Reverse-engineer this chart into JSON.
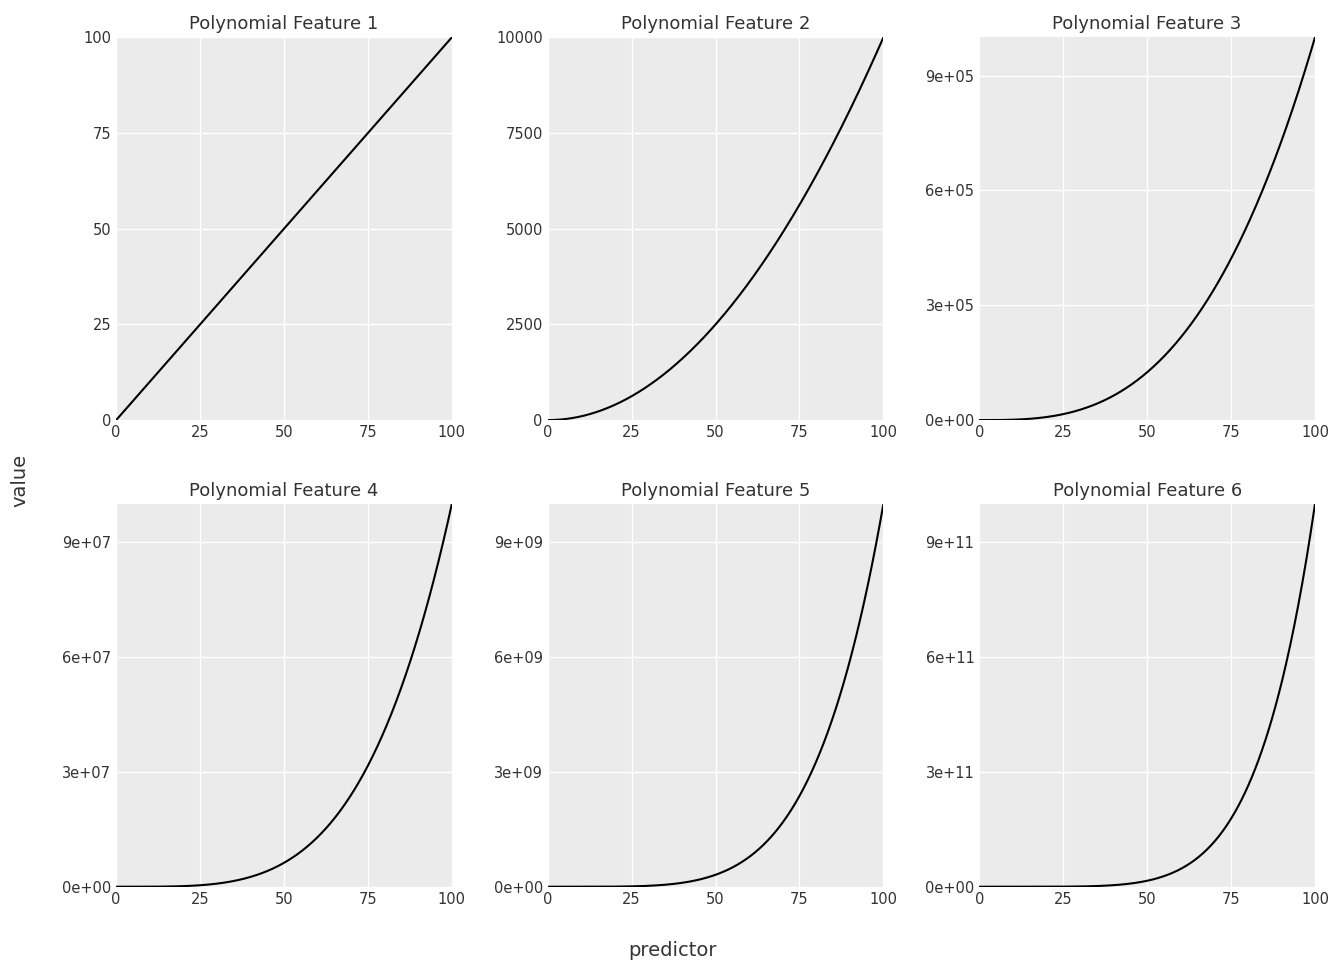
{
  "titles": [
    "Polynomial Feature 1",
    "Polynomial Feature 2",
    "Polynomial Feature 3",
    "Polynomial Feature 4",
    "Polynomial Feature 5",
    "Polynomial Feature 6"
  ],
  "degrees": [
    1,
    2,
    3,
    4,
    5,
    6
  ],
  "x_range": [
    0,
    100
  ],
  "n_points": 500,
  "xlabel": "predictor",
  "ylabel": "value",
  "line_color": "#000000",
  "line_width": 1.5,
  "bg_color": "#ebebeb",
  "grid_color": "#ffffff",
  "title_fontsize": 13,
  "label_fontsize": 13,
  "tick_fontsize": 10.5,
  "nrows": 2,
  "ncols": 3,
  "yticks_1": [
    0,
    25,
    50,
    75,
    100
  ],
  "yticks_2": [
    0,
    2500,
    5000,
    7500,
    10000
  ],
  "yticks_3": [
    0,
    300000,
    600000,
    900000
  ],
  "yticks_4": [
    0,
    30000000,
    60000000,
    90000000
  ],
  "yticks_5": [
    0,
    3000000000,
    6000000000,
    9000000000
  ],
  "yticks_6": [
    0,
    300000000000,
    600000000000,
    900000000000
  ]
}
